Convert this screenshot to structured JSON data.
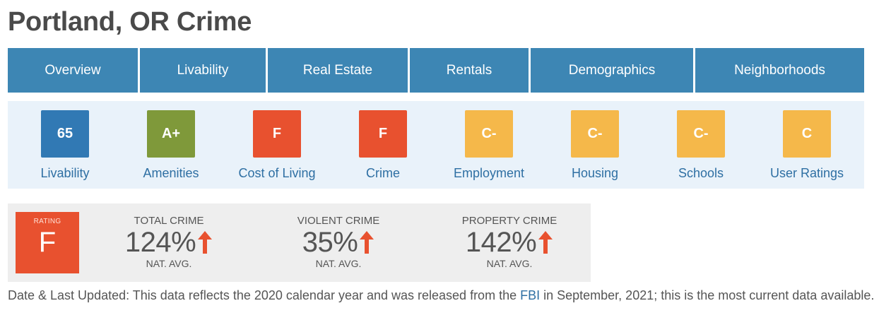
{
  "page": {
    "title": "Portland, OR Crime"
  },
  "nav": {
    "tabs": [
      {
        "label": "Overview"
      },
      {
        "label": "Livability"
      },
      {
        "label": "Real Estate"
      },
      {
        "label": "Rentals"
      },
      {
        "label": "Demographics"
      },
      {
        "label": "Neighborhoods"
      }
    ]
  },
  "grades": [
    {
      "value": "65",
      "label": "Livability",
      "color": "#3179b4"
    },
    {
      "value": "A+",
      "label": "Amenities",
      "color": "#7f993a"
    },
    {
      "value": "F",
      "label": "Cost of Living",
      "color": "#e8512f"
    },
    {
      "value": "F",
      "label": "Crime",
      "color": "#e8512f"
    },
    {
      "value": "C-",
      "label": "Employment",
      "color": "#f5b84a"
    },
    {
      "value": "C-",
      "label": "Housing",
      "color": "#f5b84a"
    },
    {
      "value": "C-",
      "label": "Schools",
      "color": "#f5b84a"
    },
    {
      "value": "C",
      "label": "User Ratings",
      "color": "#f5b84a"
    }
  ],
  "crime": {
    "rating_caption": "RATING",
    "rating_grade": "F",
    "rating_color": "#e8512f",
    "arrow_color": "#e8512f",
    "arrow_icon": "arrow-up-icon",
    "stats": [
      {
        "title": "TOTAL CRIME",
        "value": "124%",
        "sub": "NAT. AVG."
      },
      {
        "title": "VIOLENT CRIME",
        "value": "35%",
        "sub": "NAT. AVG."
      },
      {
        "title": "PROPERTY CRIME",
        "value": "142%",
        "sub": "NAT. AVG."
      }
    ]
  },
  "footnote": {
    "before": "Date & Last Updated: This data reflects the 2020 calendar year and was released from the ",
    "link": "FBI",
    "after": " in September, 2021; this is the most current data available."
  }
}
